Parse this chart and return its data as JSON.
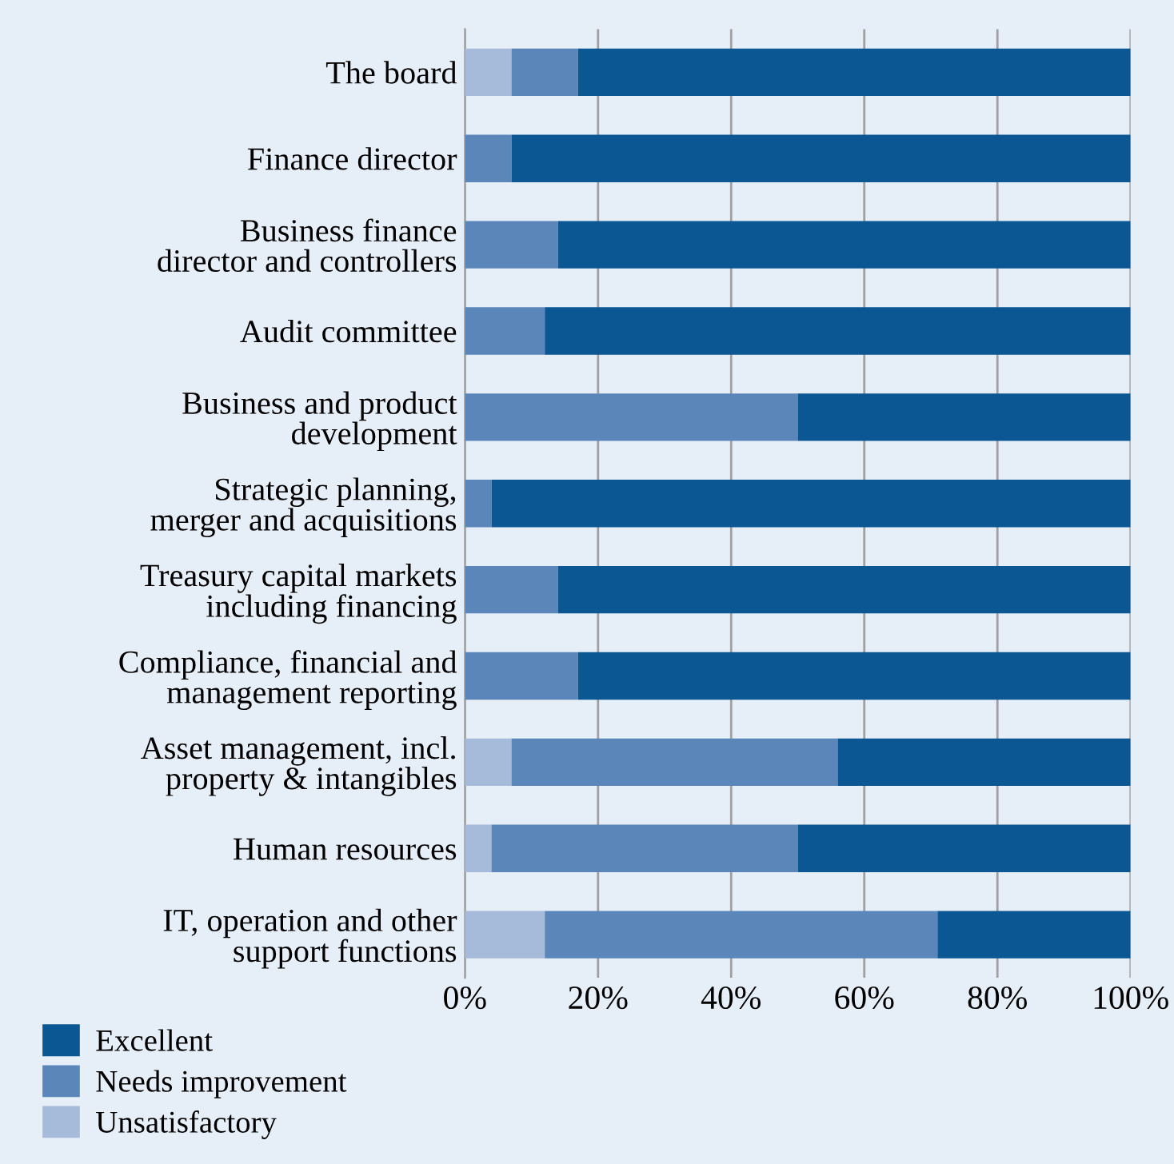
{
  "chart_data": {
    "type": "bar",
    "orientation": "horizontal",
    "stacked": true,
    "categories": [
      "The board",
      "Finance director",
      "Business finance\ndirector and controllers",
      "Audit committee",
      "Business and product\ndevelopment",
      "Strategic planning,\nmerger and acquisitions",
      "Treasury capital markets\nincluding financing",
      "Compliance, financial and\nmanagement reporting",
      "Asset management, incl.\nproperty & intangibles",
      "Human resources",
      "IT, operation and other\nsupport functions"
    ],
    "series": [
      {
        "name": "Unsatisfactory",
        "color": "#a6bad9",
        "values": [
          7,
          0,
          0,
          0,
          0,
          0,
          0,
          0,
          7,
          4,
          12
        ]
      },
      {
        "name": "Needs improvement",
        "color": "#5b86b9",
        "values": [
          10,
          7,
          14,
          12,
          50,
          4,
          14,
          17,
          49,
          46,
          59
        ]
      },
      {
        "name": "Excellent",
        "color": "#0b5794",
        "values": [
          83,
          93,
          86,
          88,
          50,
          96,
          86,
          83,
          44,
          50,
          29
        ]
      }
    ],
    "xlim": [
      0,
      100
    ],
    "xticks": [
      {
        "value": 0,
        "label": "0%"
      },
      {
        "value": 20,
        "label": "20%"
      },
      {
        "value": 40,
        "label": "40%"
      },
      {
        "value": 60,
        "label": "60%"
      },
      {
        "value": 80,
        "label": "80%"
      },
      {
        "value": 100,
        "label": "100%"
      }
    ],
    "grid": "x",
    "legend": "bottom left"
  }
}
